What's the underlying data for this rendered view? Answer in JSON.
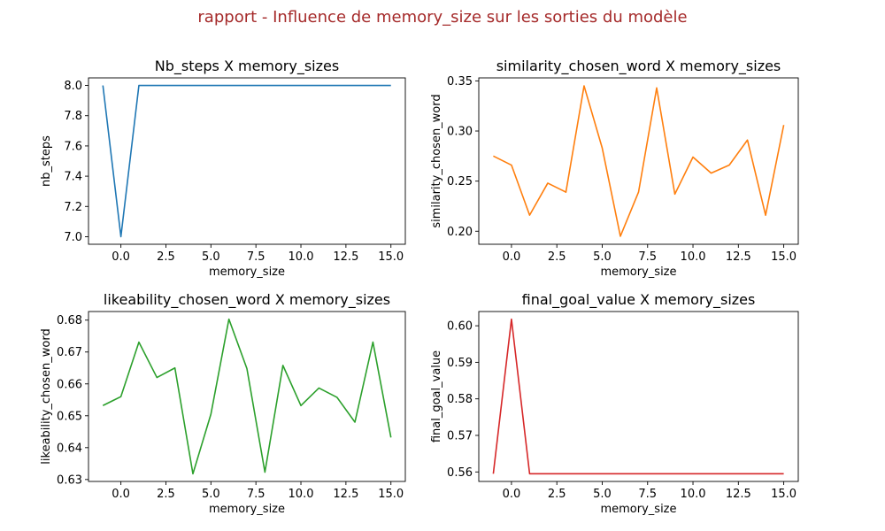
{
  "suptitle": "rapport - Influence de memory_size sur les sorties du modèle",
  "colors": {
    "suptitle": "#a52a2a"
  },
  "chart_data": [
    {
      "type": "line",
      "title": "Nb_steps X memory_sizes",
      "xlabel": "memory_size",
      "ylabel": "nb_steps",
      "color": "#1f77b4",
      "x": [
        -1,
        0,
        1,
        2,
        3,
        4,
        5,
        6,
        7,
        8,
        9,
        10,
        11,
        12,
        13,
        14,
        15
      ],
      "values": [
        8,
        7,
        8,
        8,
        8,
        8,
        8,
        8,
        8,
        8,
        8,
        8,
        8,
        8,
        8,
        8,
        8
      ],
      "xlim": [
        -1.8,
        15.8
      ],
      "ylim": [
        6.95,
        8.05
      ],
      "xticks": [
        0,
        2.5,
        5,
        7.5,
        10,
        12.5,
        15
      ],
      "xtick_labels": [
        "0.0",
        "2.5",
        "5.0",
        "7.5",
        "10.0",
        "12.5",
        "15.0"
      ],
      "yticks": [
        7.0,
        7.2,
        7.4,
        7.6,
        7.8,
        8.0
      ],
      "ytick_labels": [
        "7.0",
        "7.2",
        "7.4",
        "7.6",
        "7.8",
        "8.0"
      ]
    },
    {
      "type": "line",
      "title": "similarity_chosen_word X memory_sizes",
      "xlabel": "memory_size",
      "ylabel": "similarity_chosen_word",
      "color": "#ff7f0e",
      "x": [
        -1,
        0,
        1,
        2,
        3,
        4,
        5,
        6,
        7,
        8,
        9,
        10,
        11,
        12,
        13,
        14,
        15
      ],
      "values": [
        0.275,
        0.266,
        0.216,
        0.248,
        0.239,
        0.345,
        0.283,
        0.195,
        0.239,
        0.343,
        0.237,
        0.274,
        0.258,
        0.266,
        0.291,
        0.216,
        0.306
      ],
      "xlim": [
        -1.8,
        15.8
      ],
      "ylim": [
        0.187,
        0.353
      ],
      "xticks": [
        0,
        2.5,
        5,
        7.5,
        10,
        12.5,
        15
      ],
      "xtick_labels": [
        "0.0",
        "2.5",
        "5.0",
        "7.5",
        "10.0",
        "12.5",
        "15.0"
      ],
      "yticks": [
        0.2,
        0.25,
        0.3,
        0.35
      ],
      "ytick_labels": [
        "0.20",
        "0.25",
        "0.30",
        "0.35"
      ]
    },
    {
      "type": "line",
      "title": "likeability_chosen_word X memory_sizes",
      "xlabel": "memory_size",
      "ylabel": "likeability_chosen_word",
      "color": "#2ca02c",
      "x": [
        -1,
        0,
        1,
        2,
        3,
        4,
        5,
        6,
        7,
        8,
        9,
        10,
        11,
        12,
        13,
        14,
        15
      ],
      "values": [
        0.6532,
        0.656,
        0.6731,
        0.662,
        0.665,
        0.6318,
        0.6505,
        0.6803,
        0.6648,
        0.6323,
        0.6658,
        0.6532,
        0.6587,
        0.6558,
        0.648,
        0.6731,
        0.6432
      ],
      "xlim": [
        -1.8,
        15.8
      ],
      "ylim": [
        0.6294,
        0.6827
      ],
      "xticks": [
        0,
        2.5,
        5,
        7.5,
        10,
        12.5,
        15
      ],
      "xtick_labels": [
        "0.0",
        "2.5",
        "5.0",
        "7.5",
        "10.0",
        "12.5",
        "15.0"
      ],
      "yticks": [
        0.63,
        0.64,
        0.65,
        0.66,
        0.67,
        0.68
      ],
      "ytick_labels": [
        "0.63",
        "0.64",
        "0.65",
        "0.66",
        "0.67",
        "0.68"
      ]
    },
    {
      "type": "line",
      "title": "final_goal_value X memory_sizes",
      "xlabel": "memory_size",
      "ylabel": "final_goal_value",
      "color": "#d62728",
      "x": [
        -1,
        0,
        1,
        2,
        3,
        4,
        5,
        6,
        7,
        8,
        9,
        10,
        11,
        12,
        13,
        14,
        15
      ],
      "values": [
        0.5595,
        0.6018,
        0.5595,
        0.5595,
        0.5595,
        0.5595,
        0.5595,
        0.5595,
        0.5595,
        0.5595,
        0.5595,
        0.5595,
        0.5595,
        0.5595,
        0.5595,
        0.5595,
        0.5595
      ],
      "xlim": [
        -1.8,
        15.8
      ],
      "ylim": [
        0.5574,
        0.6039
      ],
      "xticks": [
        0,
        2.5,
        5,
        7.5,
        10,
        12.5,
        15
      ],
      "xtick_labels": [
        "0.0",
        "2.5",
        "5.0",
        "7.5",
        "10.0",
        "12.5",
        "15.0"
      ],
      "yticks": [
        0.56,
        0.57,
        0.58,
        0.59,
        0.6
      ],
      "ytick_labels": [
        "0.56",
        "0.57",
        "0.58",
        "0.59",
        "0.60"
      ]
    }
  ]
}
